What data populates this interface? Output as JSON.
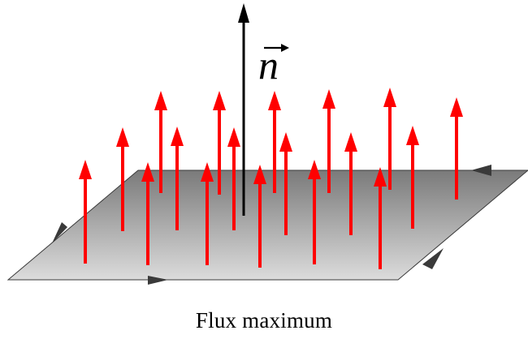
{
  "diagram": {
    "normal_symbol": "n",
    "caption": "Flux maximum",
    "colors": {
      "field_arrows": "#ff0000",
      "normal_arrow": "#000000",
      "surface_light": "#d4d4d4",
      "surface_dark": "#7f7f7f",
      "surface_edge": "#3a3a3a",
      "orientation_arrows": "#333333"
    },
    "field_arrow_count": 18
  }
}
